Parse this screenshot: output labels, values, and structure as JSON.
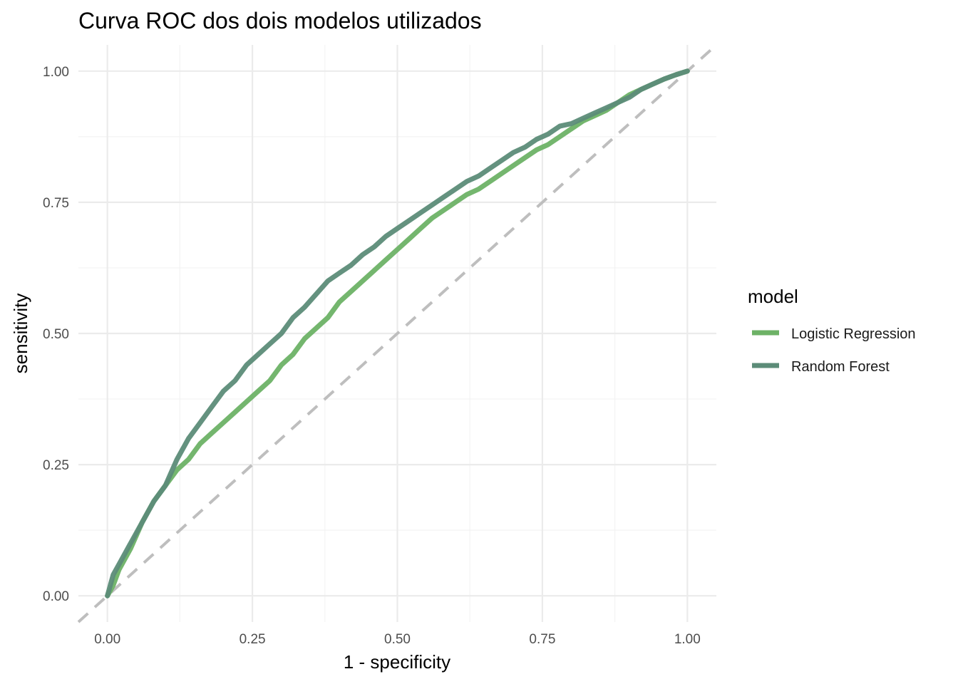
{
  "chart_data": {
    "type": "line",
    "title": "Curva ROC dos dois modelos utilizados",
    "xlabel": "1 - specificity",
    "ylabel": "sensitivity",
    "xlim": [
      -0.05,
      1.05
    ],
    "ylim": [
      -0.05,
      1.05
    ],
    "x_ticks": [
      "0.00",
      "0.25",
      "0.50",
      "0.75",
      "1.00"
    ],
    "y_ticks": [
      "0.00",
      "0.25",
      "0.50",
      "0.75",
      "1.00"
    ],
    "grid": true,
    "reference_line": {
      "style": "dashed",
      "from": [
        -0.05,
        -0.05
      ],
      "to": [
        1.05,
        1.05
      ],
      "color": "#bebebe"
    },
    "legend": {
      "title": "model",
      "position": "right"
    },
    "series": [
      {
        "name": "Logistic Regression",
        "color": "#6db266",
        "x": [
          0.0,
          0.01,
          0.02,
          0.04,
          0.06,
          0.08,
          0.1,
          0.12,
          0.14,
          0.16,
          0.18,
          0.2,
          0.22,
          0.24,
          0.26,
          0.28,
          0.3,
          0.32,
          0.34,
          0.36,
          0.38,
          0.4,
          0.42,
          0.44,
          0.46,
          0.48,
          0.5,
          0.52,
          0.54,
          0.56,
          0.58,
          0.6,
          0.62,
          0.64,
          0.66,
          0.68,
          0.7,
          0.72,
          0.74,
          0.76,
          0.78,
          0.8,
          0.82,
          0.84,
          0.86,
          0.88,
          0.9,
          0.92,
          0.94,
          0.96,
          0.98,
          1.0
        ],
        "y": [
          0.0,
          0.02,
          0.05,
          0.09,
          0.14,
          0.18,
          0.21,
          0.24,
          0.26,
          0.29,
          0.31,
          0.33,
          0.35,
          0.37,
          0.39,
          0.41,
          0.44,
          0.46,
          0.49,
          0.51,
          0.53,
          0.56,
          0.58,
          0.6,
          0.62,
          0.64,
          0.66,
          0.68,
          0.7,
          0.72,
          0.735,
          0.75,
          0.765,
          0.775,
          0.79,
          0.805,
          0.82,
          0.835,
          0.85,
          0.86,
          0.875,
          0.89,
          0.905,
          0.915,
          0.925,
          0.94,
          0.955,
          0.965,
          0.975,
          0.985,
          0.993,
          1.0
        ]
      },
      {
        "name": "Random Forest",
        "color": "#5c8c78",
        "x": [
          0.0,
          0.01,
          0.02,
          0.04,
          0.06,
          0.08,
          0.1,
          0.12,
          0.14,
          0.16,
          0.18,
          0.2,
          0.22,
          0.24,
          0.26,
          0.28,
          0.3,
          0.32,
          0.34,
          0.36,
          0.38,
          0.4,
          0.42,
          0.44,
          0.46,
          0.48,
          0.5,
          0.52,
          0.54,
          0.56,
          0.58,
          0.6,
          0.62,
          0.64,
          0.66,
          0.68,
          0.7,
          0.72,
          0.74,
          0.76,
          0.78,
          0.8,
          0.82,
          0.84,
          0.86,
          0.88,
          0.9,
          0.92,
          0.94,
          0.96,
          0.98,
          1.0
        ],
        "y": [
          0.0,
          0.04,
          0.06,
          0.1,
          0.14,
          0.18,
          0.21,
          0.26,
          0.3,
          0.33,
          0.36,
          0.39,
          0.41,
          0.44,
          0.46,
          0.48,
          0.5,
          0.53,
          0.55,
          0.575,
          0.6,
          0.615,
          0.63,
          0.65,
          0.665,
          0.685,
          0.7,
          0.715,
          0.73,
          0.745,
          0.76,
          0.775,
          0.79,
          0.8,
          0.815,
          0.83,
          0.845,
          0.855,
          0.87,
          0.88,
          0.895,
          0.9,
          0.91,
          0.92,
          0.93,
          0.94,
          0.95,
          0.965,
          0.975,
          0.985,
          0.993,
          1.0
        ]
      }
    ]
  }
}
